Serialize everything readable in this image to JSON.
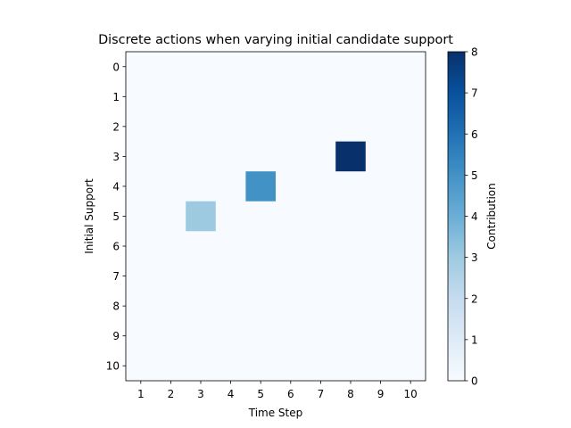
{
  "chart_data": {
    "type": "heatmap",
    "title": "Discrete actions when varying initial candidate support",
    "xlabel": "Time Step",
    "ylabel": "Initial Support",
    "x_ticks": [
      "1",
      "2",
      "3",
      "4",
      "5",
      "6",
      "7",
      "8",
      "9",
      "10"
    ],
    "y_ticks": [
      "0",
      "1",
      "2",
      "3",
      "4",
      "5",
      "6",
      "7",
      "8",
      "9",
      "10"
    ],
    "colormap": "Blues",
    "colorbar": {
      "label": "Contribution",
      "range": [
        0,
        8
      ],
      "ticks": [
        "0",
        "1",
        "2",
        "3",
        "4",
        "5",
        "6",
        "7",
        "8"
      ]
    },
    "background_value": 0,
    "cells": [
      {
        "time_step": 3,
        "initial_support": 5,
        "value": 3
      },
      {
        "time_step": 5,
        "initial_support": 4,
        "value": 5
      },
      {
        "time_step": 8,
        "initial_support": 3,
        "value": 8
      }
    ]
  }
}
